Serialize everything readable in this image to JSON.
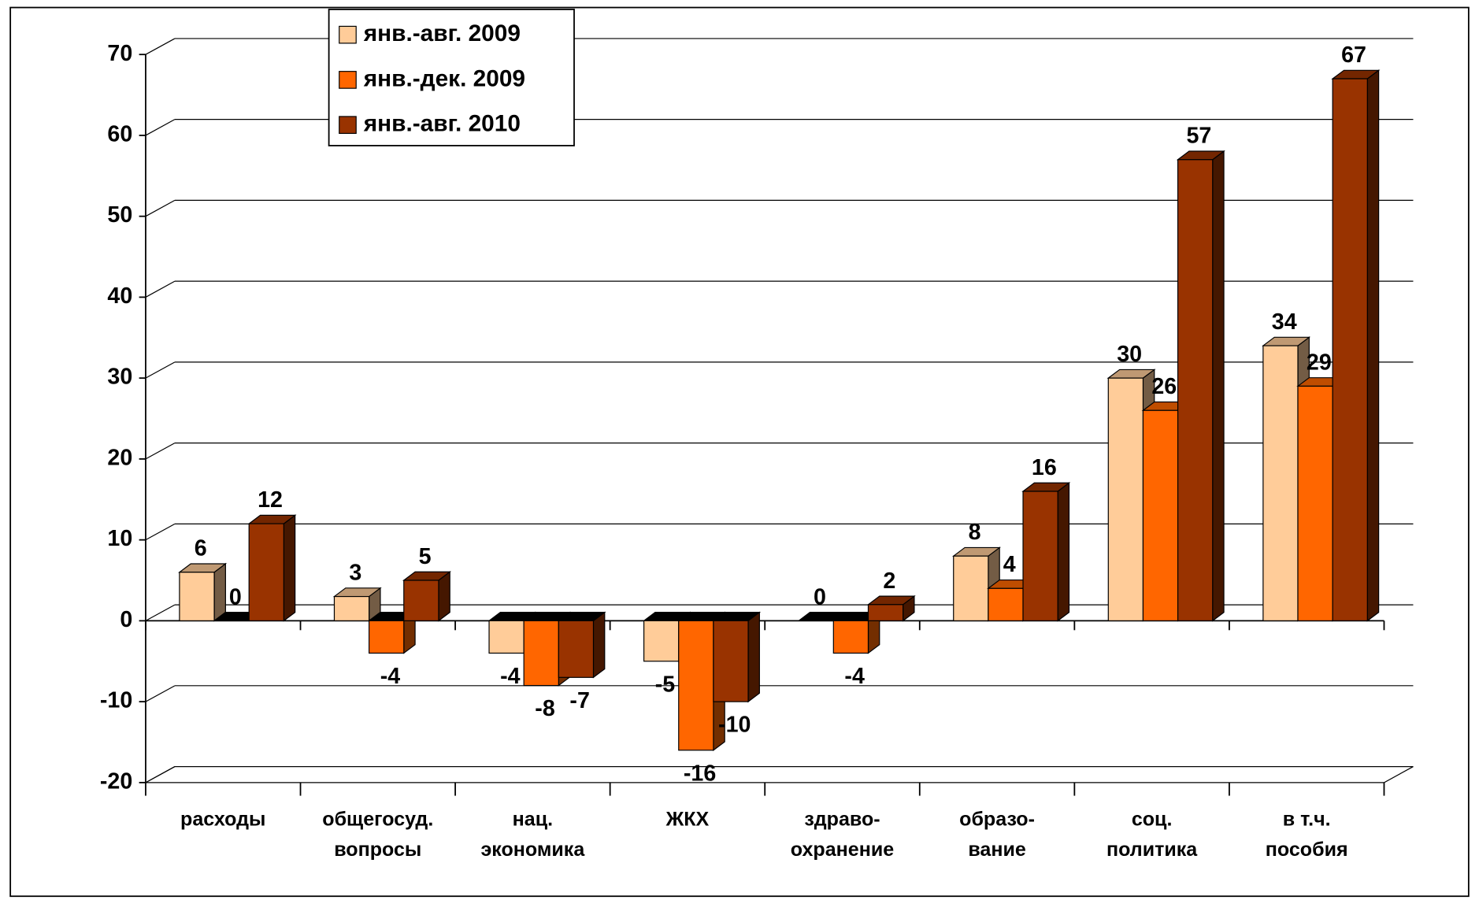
{
  "chart_data": {
    "type": "bar3d",
    "categories": [
      "расходы",
      "общегосуд.\nвопросы",
      "нац.\nэкономика",
      "ЖКХ",
      "здраво-\nохранение",
      "образо-\nвание",
      "соц.\nполитика",
      "в т.ч.\nпособия"
    ],
    "series": [
      {
        "name": "янв.-авг. 2009",
        "color": "#ffcc99",
        "values": [
          6,
          3,
          -4,
          -5,
          0,
          8,
          30,
          34
        ]
      },
      {
        "name": "янв.-дек. 2009",
        "color": "#ff6600",
        "values": [
          0,
          -4,
          -8,
          -16,
          -4,
          4,
          26,
          29
        ]
      },
      {
        "name": "янв.-авг. 2010",
        "color": "#993300",
        "values": [
          12,
          5,
          -7,
          -10,
          2,
          16,
          57,
          67
        ]
      }
    ],
    "ylim": [
      -20,
      70
    ],
    "yticks": [
      -20,
      -10,
      0,
      10,
      20,
      30,
      40,
      50,
      60,
      70
    ],
    "grid": true,
    "legend": "top-left"
  }
}
